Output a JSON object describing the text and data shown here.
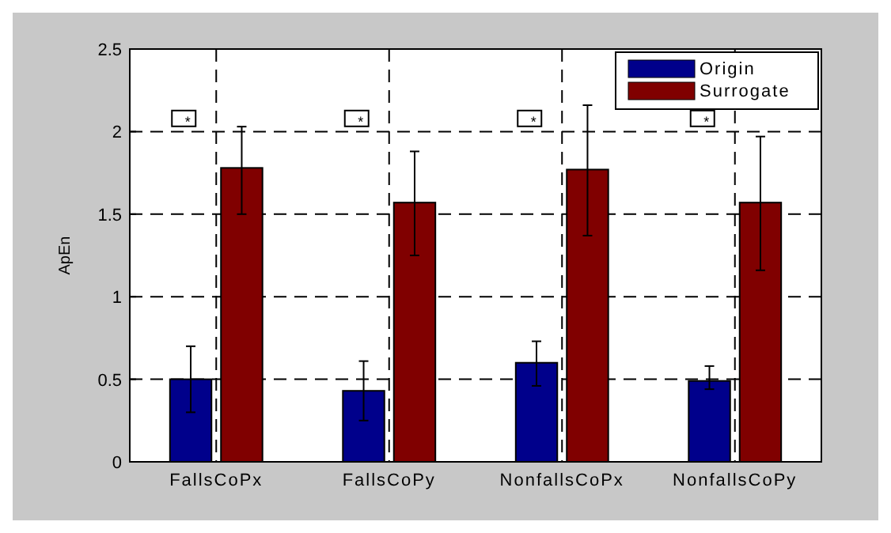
{
  "chart_data": {
    "type": "bar",
    "ylabel": "ApEn",
    "categories": [
      "FallsCoPx",
      "FallsCoPy",
      "NonfallsCoPx",
      "NonfallsCoPy"
    ],
    "series": [
      {
        "name": "Origin",
        "color": "#00008b",
        "values": [
          0.5,
          0.43,
          0.6,
          0.49
        ],
        "errors": [
          [
            0.3,
            0.7
          ],
          [
            0.25,
            0.61
          ],
          [
            0.46,
            0.73
          ],
          [
            0.44,
            0.58
          ]
        ]
      },
      {
        "name": "Surrogate",
        "color": "#800000",
        "values": [
          1.78,
          1.57,
          1.77,
          1.57
        ],
        "errors": [
          [
            1.5,
            2.03
          ],
          [
            1.25,
            1.88
          ],
          [
            1.37,
            2.16
          ],
          [
            1.16,
            1.97
          ]
        ]
      }
    ],
    "ylim": [
      0,
      2.5
    ],
    "yticks": [
      0,
      0.5,
      1,
      1.5,
      2,
      2.5
    ],
    "grid": true,
    "legend": "top right",
    "annotations": [
      "*",
      "*",
      "*",
      "*"
    ]
  }
}
